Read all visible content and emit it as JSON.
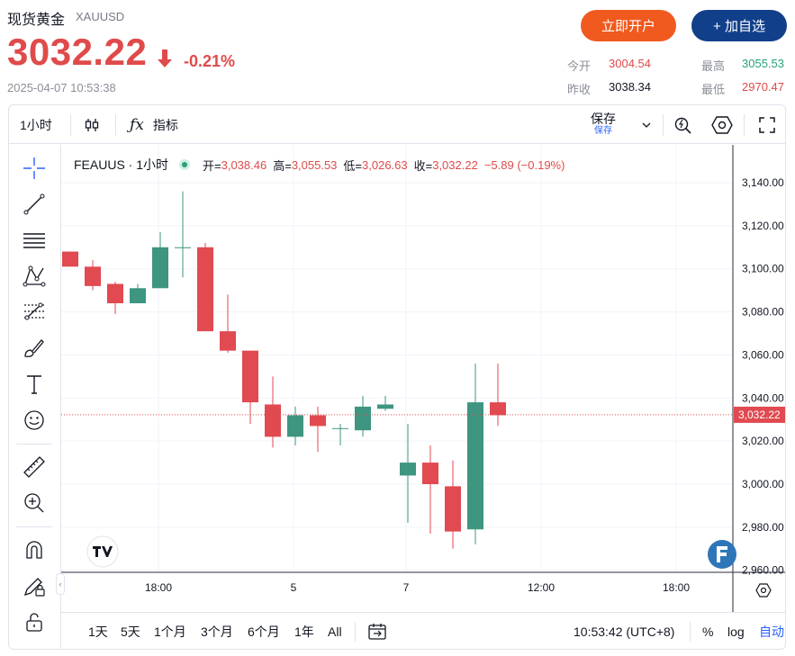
{
  "header": {
    "title": "现货黄金",
    "code": "XAUUSD",
    "price": "3032.22",
    "change": "-0.21%",
    "timestamp": "2025-04-07 10:53:38",
    "open_account_label": "立即开户",
    "add_watch_label": "+ 加自选",
    "stats": {
      "open_label": "今开",
      "open_value": "3004.54",
      "high_label": "最高",
      "high_value": "3055.53",
      "prev_close_label": "昨收",
      "prev_close_value": "3038.34",
      "low_label": "最低",
      "low_value": "2970.47"
    }
  },
  "toolbar": {
    "interval": "1小时",
    "indicators_label": "指标",
    "save_label": "保存",
    "save_sub_label": "保存"
  },
  "legend": {
    "symbol": "FEAUUS · 1小时",
    "open_key": "开=",
    "open_val": "3,038.46",
    "high_key": "高=",
    "high_val": "3,055.53",
    "low_key": "低=",
    "low_val": "3,026.63",
    "close_key": "收=",
    "close_val": "3,032.22",
    "change": "−5.89 (−0.19%)"
  },
  "bottom": {
    "ranges": [
      "1天",
      "5天",
      "1个月",
      "3个月",
      "6个月",
      "1年",
      "All"
    ],
    "clock": "10:53:42 (UTC+8)",
    "percent_label": "%",
    "log_label": "log",
    "auto_label": "自动"
  },
  "colors": {
    "up": "#3e9580",
    "down": "#e04a50",
    "accent": "#2962ff"
  },
  "chart_data": {
    "type": "candlestick",
    "ylim": [
      2950,
      3150
    ],
    "yticks": [
      "3,140.00",
      "3,120.00",
      "3,100.00",
      "3,080.00",
      "3,060.00",
      "3,040.00",
      "3,020.00",
      "3,000.00",
      "2,980.00",
      "2,960.00"
    ],
    "ytick_values": [
      3140,
      3120,
      3100,
      3080,
      3060,
      3040,
      3020,
      3000,
      2980,
      2960
    ],
    "xticks": [
      "18:00",
      "5",
      "7",
      "12:00",
      "18:00"
    ],
    "current_price_label": "3,032.22",
    "current_price": 3032.22,
    "candles": [
      {
        "o": 3108,
        "h": 3108,
        "l": 3101,
        "c": 3101
      },
      {
        "o": 3101,
        "h": 3104,
        "l": 3090,
        "c": 3092
      },
      {
        "o": 3093,
        "h": 3094,
        "l": 3079,
        "c": 3084
      },
      {
        "o": 3084,
        "h": 3093,
        "l": 3084,
        "c": 3091
      },
      {
        "o": 3091,
        "h": 3117,
        "l": 3091,
        "c": 3110
      },
      {
        "o": 3110,
        "h": 3136,
        "l": 3096,
        "c": 3110
      },
      {
        "o": 3110,
        "h": 3112,
        "l": 3071,
        "c": 3071
      },
      {
        "o": 3071,
        "h": 3088,
        "l": 3061,
        "c": 3062
      },
      {
        "o": 3062,
        "h": 3062,
        "l": 3028,
        "c": 3038
      },
      {
        "o": 3037,
        "h": 3050,
        "l": 3017,
        "c": 3022
      },
      {
        "o": 3022,
        "h": 3036,
        "l": 3018,
        "c": 3032
      },
      {
        "o": 3032,
        "h": 3036,
        "l": 3015,
        "c": 3027
      },
      {
        "o": 3026,
        "h": 3028,
        "l": 3018,
        "c": 3026
      },
      {
        "o": 3025,
        "h": 3041,
        "l": 3022,
        "c": 3036
      },
      {
        "o": 3035,
        "h": 3041,
        "l": 3034,
        "c": 3037
      },
      {
        "o": 3004,
        "h": 3028,
        "l": 2982,
        "c": 3010
      },
      {
        "o": 3010,
        "h": 3018,
        "l": 2977,
        "c": 3000
      },
      {
        "o": 2999,
        "h": 3011,
        "l": 2970,
        "c": 2978
      },
      {
        "o": 2979,
        "h": 3056,
        "l": 2972,
        "c": 3038
      },
      {
        "o": 3038,
        "h": 3056,
        "l": 3027,
        "c": 3032
      }
    ]
  }
}
